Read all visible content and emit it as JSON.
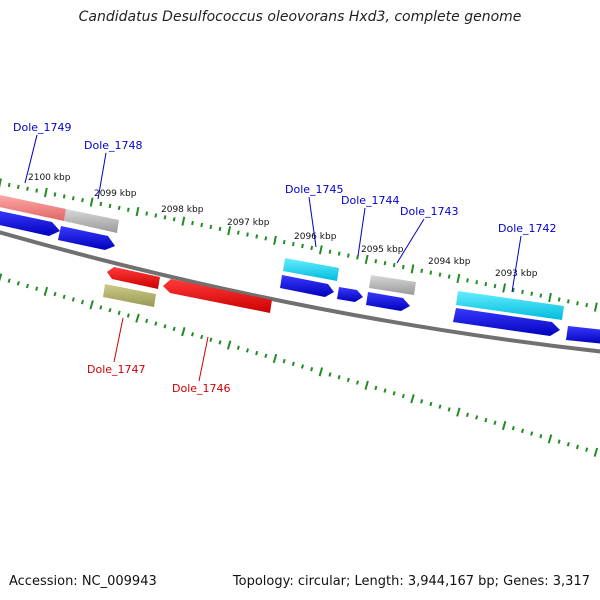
{
  "title": "Candidatus Desulfococcus oleovorans Hxd3, complete genome",
  "footer": {
    "accession": "Accession: NC_009943",
    "topology": "Topology: circular; Length: 3,944,167 bp; Genes: 3,317"
  },
  "ticks": [
    {
      "label": "2100 kbp"
    },
    {
      "label": "2099 kbp"
    },
    {
      "label": "2098 kbp"
    },
    {
      "label": "2097 kbp"
    },
    {
      "label": "2096 kbp"
    },
    {
      "label": "2095 kbp"
    },
    {
      "label": "2094 kbp"
    },
    {
      "label": "2093 kbp"
    }
  ],
  "genes": [
    {
      "label": "Dole_1749",
      "strand": "forward"
    },
    {
      "label": "Dole_1748",
      "strand": "forward"
    },
    {
      "label": "Dole_1745",
      "strand": "forward"
    },
    {
      "label": "Dole_1744",
      "strand": "forward"
    },
    {
      "label": "Dole_1743",
      "strand": "forward"
    },
    {
      "label": "Dole_1742",
      "strand": "forward"
    },
    {
      "label": "Dole_1747",
      "strand": "reverse"
    },
    {
      "label": "Dole_1746",
      "strand": "reverse"
    }
  ],
  "colors": {
    "cds_forward": "#0000ee",
    "cds_reverse": "#ee0000",
    "tick": "#228b22",
    "label_forward": "#0000cc",
    "label_reverse": "#cc0000",
    "backbone": "#707070"
  }
}
